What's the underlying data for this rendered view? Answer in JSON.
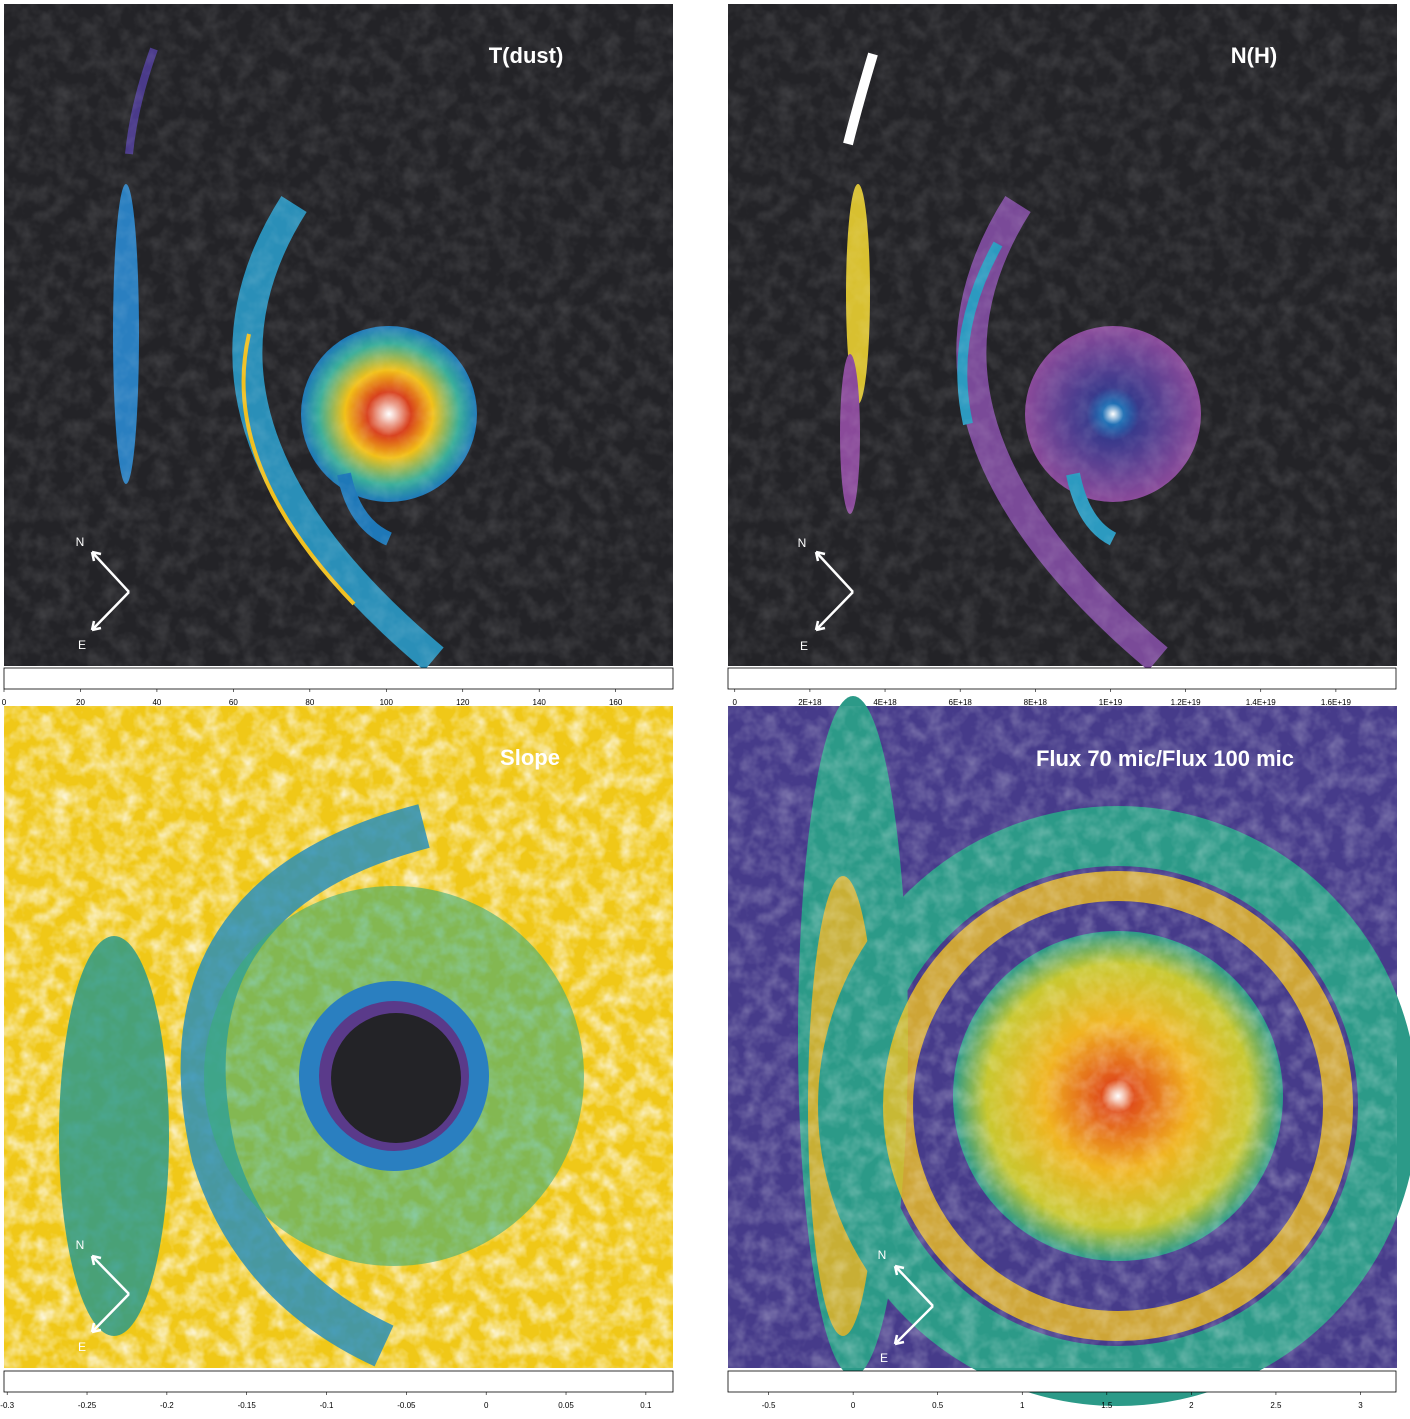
{
  "panels": [
    {
      "title": "T(dust)",
      "north": "N",
      "east": "E",
      "colorbar": {
        "lim": [
          0,
          175
        ],
        "ticks": [
          0,
          20,
          40,
          60,
          80,
          100,
          120,
          140,
          160
        ]
      }
    },
    {
      "title": "N(H)",
      "north": "N",
      "east": "E",
      "colorbar": {
        "lim": [
          -1.8e+17,
          1.76e+19
        ],
        "ticks": [
          0,
          {
            "value": 2e+18,
            "label": "2E+18"
          },
          {
            "value": 4e+18,
            "label": "4E+18"
          },
          {
            "value": 6e+18,
            "label": "6E+18"
          },
          {
            "value": 8e+18,
            "label": "8E+18"
          },
          {
            "value": 1e+19,
            "label": "1E+19"
          },
          {
            "value": 1.2e+19,
            "label": "1.2E+19"
          },
          {
            "value": 1.4e+19,
            "label": "1.4E+19"
          },
          {
            "value": 1.6e+19,
            "label": "1.6E+19"
          }
        ]
      }
    },
    {
      "title": "Slope",
      "north": "N",
      "east": "E",
      "colorbar": {
        "lim": [
          -0.302,
          0.117
        ],
        "ticks": [
          -0.3,
          -0.25,
          -0.2,
          -0.15,
          -0.1,
          -0.05,
          0,
          0.05,
          0.1
        ]
      }
    },
    {
      "title": "Flux 70 mic/Flux 100 mic",
      "north": "N",
      "east": "E",
      "colorbar": {
        "lim": [
          -0.74,
          3.21
        ],
        "ticks": [
          -0.5,
          0,
          0.5,
          1,
          1.5,
          2,
          2.5,
          3
        ]
      }
    }
  ]
}
